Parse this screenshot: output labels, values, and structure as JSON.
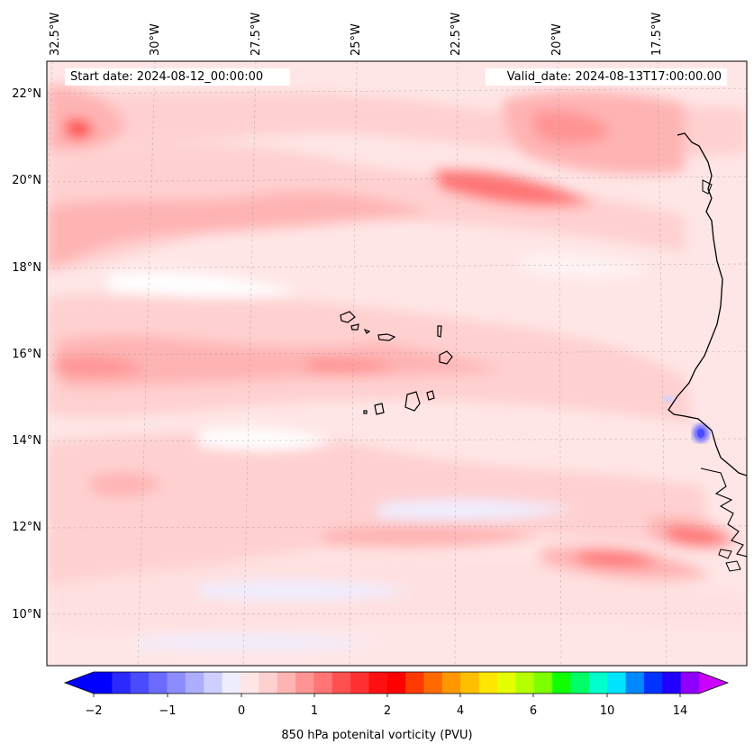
{
  "header": {
    "start_date": "Start date: 2024-08-12_00:00:00",
    "valid_date": "Valid_date: 2024-08-13T17:00:00.00"
  },
  "axes": {
    "longitude_labels": [
      "32.5°W",
      "30°W",
      "27.5°W",
      "25°W",
      "22.5°W",
      "20°W",
      "17.5°W"
    ],
    "latitude_labels": [
      "22°N",
      "20°N",
      "18°N",
      "16°N",
      "14°N",
      "12°N",
      "10°N"
    ]
  },
  "colorbar": {
    "label": "850 hPa potenital vorticity (PVU)",
    "tick_labels": [
      "−2",
      "−1",
      "0",
      "1",
      "2",
      "4",
      "6",
      "10",
      "14"
    ],
    "colors": [
      "#0000ff",
      "#2a2aff",
      "#4a4aff",
      "#6b6bff",
      "#8c8cff",
      "#adadff",
      "#cfcfff",
      "#eeeeff",
      "#ffe6e6",
      "#ffd0d0",
      "#ffb4b4",
      "#ff9494",
      "#ff7474",
      "#ff5050",
      "#ff3030",
      "#ff1010",
      "#ff0000",
      "#ff3a00",
      "#ff6a00",
      "#ff9800",
      "#ffbf00",
      "#ffe600",
      "#e6ff00",
      "#b5ff00",
      "#7dff00",
      "#10ff00",
      "#00ff66",
      "#00ffcc",
      "#00e5ff",
      "#0088ff",
      "#0033ff",
      "#2200ff",
      "#9000ff"
    ],
    "under_color": "#0000ff",
    "over_color": "#cc00ff"
  }
}
